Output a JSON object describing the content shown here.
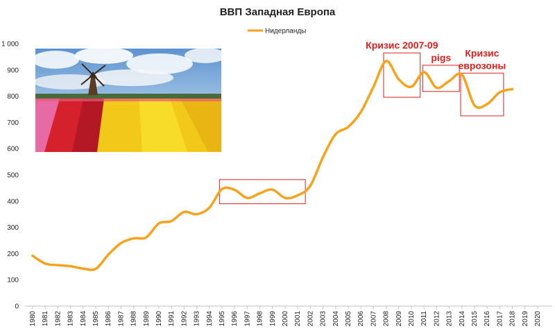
{
  "chart_data": {
    "type": "line",
    "title": "ВВП Западная Европа",
    "xlabel": "",
    "ylabel": "",
    "x": [
      "1980",
      "1981",
      "1982",
      "1983",
      "1984",
      "1985",
      "1986",
      "1987",
      "1988",
      "1989",
      "1990",
      "1991",
      "1992",
      "1993",
      "1994",
      "1995",
      "1996",
      "1997",
      "1998",
      "1999",
      "2000",
      "2001",
      "2002",
      "2003",
      "2004",
      "2005",
      "2006",
      "2007",
      "2008",
      "2009",
      "2010",
      "2011",
      "2012",
      "2013",
      "2014",
      "2015",
      "2016",
      "2017",
      "2018",
      "2019",
      "2020"
    ],
    "series": [
      {
        "name": "Нидерланды",
        "color": "#f7a21b",
        "values": [
          192,
          162,
          156,
          152,
          143,
          142,
          196,
          240,
          258,
          262,
          315,
          324,
          359,
          350,
          375,
          446,
          443,
          412,
          430,
          444,
          412,
          422,
          459,
          568,
          655,
          683,
          740,
          836,
          934,
          864,
          836,
          892,
          832,
          858,
          882,
          765,
          770,
          815,
          827,
          null,
          null
        ]
      }
    ],
    "ylim": [
      0,
      1000
    ],
    "yticks": [
      {
        "value": 0,
        "label": "0"
      },
      {
        "value": 100,
        "label": "100"
      },
      {
        "value": 200,
        "label": "200"
      },
      {
        "value": 300,
        "label": "300"
      },
      {
        "value": 400,
        "label": "400"
      },
      {
        "value": 500,
        "label": "500"
      },
      {
        "value": 600,
        "label": "600"
      },
      {
        "value": 700,
        "label": "700"
      },
      {
        "value": 800,
        "label": "800"
      },
      {
        "value": 900,
        "label": "900"
      },
      {
        "value": 1000,
        "label": "1 000"
      }
    ],
    "grid": false,
    "legend": "top-center",
    "annotations": [
      {
        "lines": [
          "Кризис 2007-09"
        ],
        "box": {
          "x0": 2007.8,
          "x1": 2010.7,
          "y0": 796,
          "y1": 965
        }
      },
      {
        "lines": [
          "pigs"
        ],
        "box": {
          "x0": 2010.9,
          "x1": 2013.8,
          "y0": 818,
          "y1": 918
        }
      },
      {
        "lines": [
          "Кризис",
          "еврозоны"
        ],
        "box": {
          "x0": 2013.9,
          "x1": 2017.3,
          "y0": 725,
          "y1": 888
        }
      },
      {
        "lines": [],
        "box": {
          "x0": 1994.8,
          "x1": 2001.6,
          "y0": 390,
          "y1": 482
        }
      }
    ],
    "annotation_color": "#e0201c",
    "picture": "netherlands-tulip-field-windmill-photo"
  }
}
